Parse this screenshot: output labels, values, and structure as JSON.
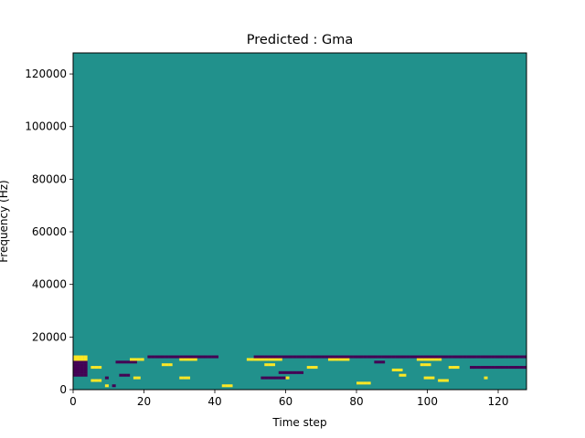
{
  "chart_data": {
    "type": "heatmap",
    "title": "Predicted : Gma",
    "xlabel": "Time step",
    "ylabel": "Frequency (Hz)",
    "xlim": [
      0,
      128
    ],
    "ylim": [
      0,
      128000
    ],
    "x_ticks": [
      0,
      20,
      40,
      60,
      80,
      100,
      120
    ],
    "y_ticks": [
      0,
      20000,
      40000,
      60000,
      80000,
      100000,
      120000
    ],
    "grid": false,
    "legend": "none",
    "colors": {
      "background": "#21918c",
      "low": "#440154",
      "high": "#fde725"
    },
    "n_time_steps": 128,
    "n_freq_bins": 128,
    "bin_width_hz": 1000,
    "values": {
      "background": 0.5,
      "low": 0,
      "high": 1
    },
    "cells": [
      [
        1,
        9,
        1
      ],
      [
        1,
        11,
        0
      ],
      [
        1,
        42,
        1
      ],
      [
        1,
        43,
        1
      ],
      [
        1,
        44,
        1
      ],
      [
        2,
        80,
        1
      ],
      [
        2,
        81,
        1
      ],
      [
        2,
        82,
        1
      ],
      [
        2,
        83,
        1
      ],
      [
        3,
        5,
        1
      ],
      [
        3,
        6,
        1
      ],
      [
        3,
        7,
        1
      ],
      [
        3,
        103,
        1
      ],
      [
        3,
        104,
        1
      ],
      [
        3,
        105,
        1
      ],
      [
        4,
        9,
        0
      ],
      [
        4,
        17,
        1
      ],
      [
        4,
        18,
        1
      ],
      [
        4,
        30,
        1
      ],
      [
        4,
        31,
        1
      ],
      [
        4,
        32,
        1
      ],
      [
        4,
        53,
        0
      ],
      [
        4,
        54,
        0
      ],
      [
        4,
        55,
        0
      ],
      [
        4,
        56,
        0
      ],
      [
        4,
        57,
        0
      ],
      [
        4,
        58,
        0
      ],
      [
        4,
        59,
        0
      ],
      [
        4,
        60,
        1
      ],
      [
        4,
        99,
        1
      ],
      [
        4,
        100,
        1
      ],
      [
        4,
        101,
        1
      ],
      [
        4,
        116,
        1
      ],
      [
        5,
        0,
        0
      ],
      [
        5,
        1,
        0
      ],
      [
        5,
        2,
        0
      ],
      [
        5,
        3,
        0
      ],
      [
        5,
        13,
        0
      ],
      [
        5,
        14,
        0
      ],
      [
        5,
        15,
        0
      ],
      [
        5,
        92,
        1
      ],
      [
        5,
        93,
        1
      ],
      [
        6,
        0,
        0
      ],
      [
        6,
        1,
        0
      ],
      [
        6,
        2,
        0
      ],
      [
        6,
        3,
        0
      ],
      [
        6,
        58,
        0
      ],
      [
        6,
        59,
        0
      ],
      [
        6,
        60,
        0
      ],
      [
        6,
        61,
        0
      ],
      [
        6,
        62,
        0
      ],
      [
        6,
        63,
        0
      ],
      [
        6,
        64,
        0
      ],
      [
        7,
        0,
        0
      ],
      [
        7,
        1,
        0
      ],
      [
        7,
        2,
        0
      ],
      [
        7,
        3,
        0
      ],
      [
        7,
        90,
        1
      ],
      [
        7,
        91,
        1
      ],
      [
        7,
        92,
        1
      ],
      [
        8,
        0,
        0
      ],
      [
        8,
        1,
        0
      ],
      [
        8,
        2,
        0
      ],
      [
        8,
        3,
        0
      ],
      [
        8,
        5,
        1
      ],
      [
        8,
        6,
        1
      ],
      [
        8,
        7,
        1
      ],
      [
        8,
        66,
        1
      ],
      [
        8,
        67,
        1
      ],
      [
        8,
        68,
        1
      ],
      [
        8,
        106,
        1
      ],
      [
        8,
        107,
        1
      ],
      [
        8,
        108,
        1
      ],
      [
        8,
        112,
        0
      ],
      [
        8,
        113,
        0
      ],
      [
        8,
        114,
        0
      ],
      [
        8,
        115,
        0
      ],
      [
        8,
        116,
        0
      ],
      [
        8,
        117,
        0
      ],
      [
        8,
        118,
        0
      ],
      [
        8,
        119,
        0
      ],
      [
        8,
        120,
        0
      ],
      [
        8,
        121,
        0
      ],
      [
        8,
        122,
        0
      ],
      [
        8,
        123,
        0
      ],
      [
        8,
        124,
        0
      ],
      [
        8,
        125,
        0
      ],
      [
        8,
        126,
        0
      ],
      [
        8,
        127,
        0
      ],
      [
        9,
        0,
        0
      ],
      [
        9,
        1,
        0
      ],
      [
        9,
        2,
        0
      ],
      [
        9,
        3,
        0
      ],
      [
        9,
        25,
        1
      ],
      [
        9,
        26,
        1
      ],
      [
        9,
        27,
        1
      ],
      [
        9,
        54,
        1
      ],
      [
        9,
        55,
        1
      ],
      [
        9,
        56,
        1
      ],
      [
        9,
        98,
        1
      ],
      [
        9,
        99,
        1
      ],
      [
        9,
        100,
        1
      ],
      [
        10,
        0,
        0
      ],
      [
        10,
        1,
        0
      ],
      [
        10,
        2,
        0
      ],
      [
        10,
        3,
        0
      ],
      [
        10,
        12,
        0
      ],
      [
        10,
        13,
        0
      ],
      [
        10,
        14,
        0
      ],
      [
        10,
        15,
        0
      ],
      [
        10,
        16,
        0
      ],
      [
        10,
        17,
        0
      ],
      [
        10,
        85,
        0
      ],
      [
        10,
        86,
        0
      ],
      [
        10,
        87,
        0
      ],
      [
        11,
        0,
        1
      ],
      [
        11,
        1,
        1
      ],
      [
        11,
        2,
        1
      ],
      [
        11,
        3,
        1
      ],
      [
        11,
        16,
        1
      ],
      [
        11,
        17,
        1
      ],
      [
        11,
        18,
        1
      ],
      [
        11,
        19,
        1
      ],
      [
        11,
        30,
        1
      ],
      [
        11,
        31,
        1
      ],
      [
        11,
        32,
        1
      ],
      [
        11,
        33,
        1
      ],
      [
        11,
        34,
        1
      ],
      [
        11,
        49,
        1
      ],
      [
        11,
        50,
        1
      ],
      [
        11,
        51,
        1
      ],
      [
        11,
        52,
        1
      ],
      [
        11,
        53,
        1
      ],
      [
        11,
        54,
        1
      ],
      [
        11,
        55,
        1
      ],
      [
        11,
        56,
        1
      ],
      [
        11,
        57,
        1
      ],
      [
        11,
        58,
        1
      ],
      [
        11,
        72,
        1
      ],
      [
        11,
        73,
        1
      ],
      [
        11,
        74,
        1
      ],
      [
        11,
        75,
        1
      ],
      [
        11,
        76,
        1
      ],
      [
        11,
        77,
        1
      ],
      [
        11,
        97,
        1
      ],
      [
        11,
        98,
        1
      ],
      [
        11,
        99,
        1
      ],
      [
        11,
        100,
        1
      ],
      [
        11,
        101,
        1
      ],
      [
        11,
        102,
        1
      ],
      [
        11,
        103,
        1
      ],
      [
        12,
        0,
        1
      ],
      [
        12,
        1,
        1
      ],
      [
        12,
        2,
        1
      ],
      [
        12,
        3,
        1
      ],
      [
        12,
        21,
        0
      ],
      [
        12,
        22,
        0
      ],
      [
        12,
        23,
        0
      ],
      [
        12,
        24,
        0
      ],
      [
        12,
        25,
        0
      ],
      [
        12,
        26,
        0
      ],
      [
        12,
        27,
        0
      ],
      [
        12,
        28,
        0
      ],
      [
        12,
        29,
        0
      ],
      [
        12,
        30,
        0
      ],
      [
        12,
        31,
        0
      ],
      [
        12,
        32,
        0
      ],
      [
        12,
        33,
        0
      ],
      [
        12,
        34,
        0
      ],
      [
        12,
        35,
        0
      ],
      [
        12,
        36,
        0
      ],
      [
        12,
        37,
        0
      ],
      [
        12,
        38,
        0
      ],
      [
        12,
        39,
        0
      ],
      [
        12,
        40,
        0
      ],
      [
        12,
        51,
        0
      ],
      [
        12,
        52,
        0
      ],
      [
        12,
        53,
        0
      ],
      [
        12,
        54,
        0
      ],
      [
        12,
        55,
        0
      ],
      [
        12,
        56,
        0
      ],
      [
        12,
        57,
        0
      ],
      [
        12,
        58,
        0
      ],
      [
        12,
        59,
        0
      ],
      [
        12,
        60,
        0
      ],
      [
        12,
        61,
        0
      ],
      [
        12,
        62,
        0
      ],
      [
        12,
        63,
        0
      ],
      [
        12,
        64,
        0
      ],
      [
        12,
        65,
        0
      ],
      [
        12,
        66,
        0
      ],
      [
        12,
        67,
        0
      ],
      [
        12,
        68,
        0
      ],
      [
        12,
        69,
        0
      ],
      [
        12,
        70,
        0
      ],
      [
        12,
        71,
        0
      ],
      [
        12,
        72,
        0
      ],
      [
        12,
        73,
        0
      ],
      [
        12,
        74,
        0
      ],
      [
        12,
        75,
        0
      ],
      [
        12,
        76,
        0
      ],
      [
        12,
        77,
        0
      ],
      [
        12,
        78,
        0
      ],
      [
        12,
        79,
        0
      ],
      [
        12,
        80,
        0
      ],
      [
        12,
        81,
        0
      ],
      [
        12,
        82,
        0
      ],
      [
        12,
        83,
        0
      ],
      [
        12,
        84,
        0
      ],
      [
        12,
        85,
        0
      ],
      [
        12,
        86,
        0
      ],
      [
        12,
        87,
        0
      ],
      [
        12,
        88,
        0
      ],
      [
        12,
        89,
        0
      ],
      [
        12,
        90,
        0
      ],
      [
        12,
        91,
        0
      ],
      [
        12,
        92,
        0
      ],
      [
        12,
        93,
        0
      ],
      [
        12,
        94,
        0
      ],
      [
        12,
        95,
        0
      ],
      [
        12,
        96,
        0
      ],
      [
        12,
        97,
        0
      ],
      [
        12,
        98,
        0
      ],
      [
        12,
        99,
        0
      ],
      [
        12,
        100,
        0
      ],
      [
        12,
        101,
        0
      ],
      [
        12,
        102,
        0
      ],
      [
        12,
        103,
        0
      ],
      [
        12,
        104,
        0
      ],
      [
        12,
        105,
        0
      ],
      [
        12,
        106,
        0
      ],
      [
        12,
        107,
        0
      ],
      [
        12,
        108,
        0
      ],
      [
        12,
        109,
        0
      ],
      [
        12,
        110,
        0
      ],
      [
        12,
        111,
        0
      ],
      [
        12,
        112,
        0
      ],
      [
        12,
        113,
        0
      ],
      [
        12,
        114,
        0
      ],
      [
        12,
        115,
        0
      ],
      [
        12,
        116,
        0
      ],
      [
        12,
        117,
        0
      ],
      [
        12,
        118,
        0
      ],
      [
        12,
        119,
        0
      ],
      [
        12,
        120,
        0
      ],
      [
        12,
        121,
        0
      ],
      [
        12,
        122,
        0
      ],
      [
        12,
        123,
        0
      ],
      [
        12,
        124,
        0
      ],
      [
        12,
        125,
        0
      ],
      [
        12,
        126,
        0
      ],
      [
        12,
        127,
        0
      ]
    ]
  }
}
